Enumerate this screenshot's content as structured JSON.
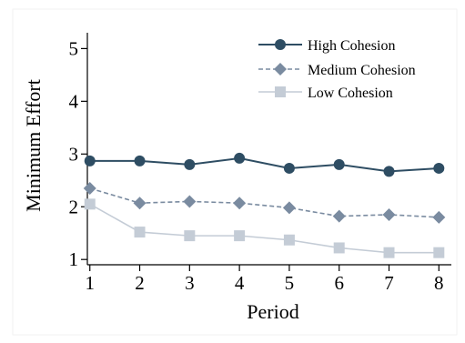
{
  "chart_data": {
    "type": "line",
    "title": "",
    "xlabel": "Period",
    "ylabel": "Minimum Effort",
    "x": [
      1,
      2,
      3,
      4,
      5,
      6,
      7,
      8
    ],
    "xticks": [
      "1",
      "2",
      "3",
      "4",
      "5",
      "6",
      "7",
      "8"
    ],
    "yticks": [
      "1",
      "2",
      "3",
      "4",
      "5"
    ],
    "xlim": [
      0.95,
      8.25
    ],
    "ylim": [
      0.9,
      5.3
    ],
    "grid": false,
    "legend_position": "top-right",
    "series": [
      {
        "name": "High Cohesion",
        "values": [
          2.87,
          2.87,
          2.8,
          2.92,
          2.73,
          2.8,
          2.67,
          2.73
        ],
        "color": "#2e4d63",
        "marker": "circle",
        "line_style": "solid"
      },
      {
        "name": "Medium Cohesion",
        "values": [
          2.35,
          2.07,
          2.1,
          2.07,
          1.98,
          1.82,
          1.85,
          1.8
        ],
        "color": "#7a8ba0",
        "marker": "diamond",
        "line_style": "dashed"
      },
      {
        "name": "Low Cohesion",
        "values": [
          2.05,
          1.52,
          1.45,
          1.45,
          1.37,
          1.22,
          1.13,
          1.13
        ],
        "color": "#c4ccd6",
        "marker": "square",
        "line_style": "solid"
      }
    ]
  }
}
